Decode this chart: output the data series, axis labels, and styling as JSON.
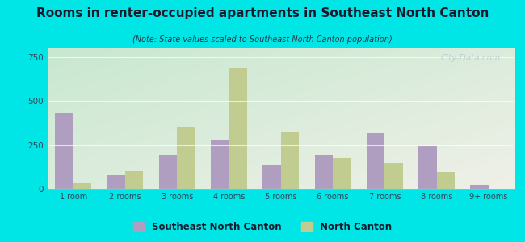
{
  "title": "Rooms in renter-occupied apartments in Southeast North Canton",
  "subtitle": "(Note: State values scaled to Southeast North Canton population)",
  "categories": [
    "1 room",
    "2 rooms",
    "3 rooms",
    "4 rooms",
    "5 rooms",
    "6 rooms",
    "7 rooms",
    "8 rooms",
    "9+ rooms"
  ],
  "southeast_values": [
    430,
    80,
    195,
    280,
    140,
    195,
    315,
    245,
    25
  ],
  "north_canton_values": [
    30,
    100,
    355,
    690,
    320,
    175,
    145,
    95,
    0
  ],
  "bar_color_southeast": "#b09ec0",
  "bar_color_north_canton": "#c0cc90",
  "background_outer": "#00e5e5",
  "ylim": [
    0,
    800
  ],
  "yticks": [
    0,
    250,
    500,
    750
  ],
  "legend_southeast": "Southeast North Canton",
  "legend_north_canton": "North Canton",
  "watermark": "City-Data.com",
  "title_color": "#1a1a2e",
  "subtitle_color": "#2a3a4a",
  "tick_color": "#334455"
}
